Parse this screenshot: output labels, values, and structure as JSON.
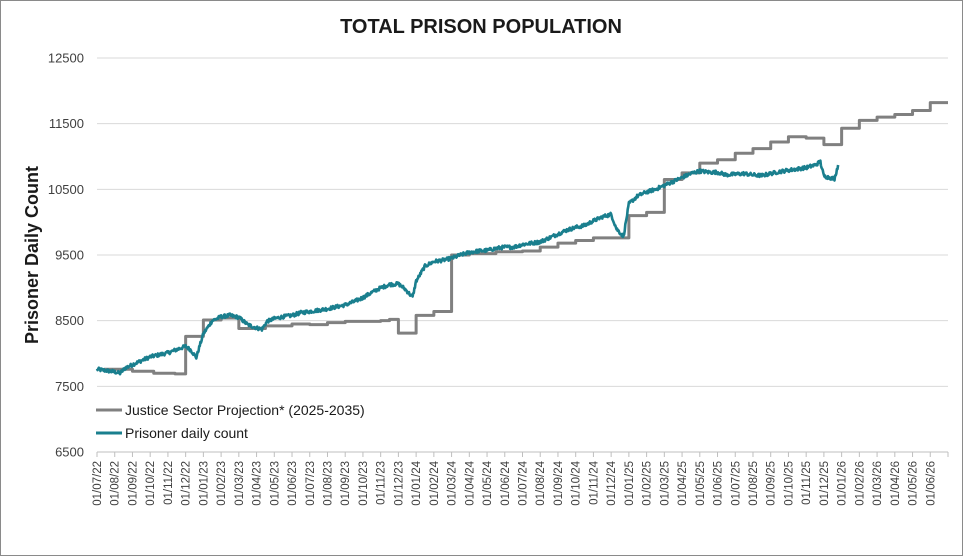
{
  "chart_data": {
    "type": "line",
    "title": "TOTAL PRISON POPULATION",
    "xlabel": "",
    "ylabel": "Prisoner Daily Count",
    "ylim": [
      6500,
      12500
    ],
    "yticks": [
      6500,
      7500,
      8500,
      9500,
      10500,
      11500,
      12500
    ],
    "grid": true,
    "legend_position": "bottom-left-inside",
    "x_categories": [
      "01/07/22",
      "01/08/22",
      "01/09/22",
      "01/10/22",
      "01/11/22",
      "01/12/22",
      "01/01/23",
      "01/02/23",
      "01/03/23",
      "01/04/23",
      "01/05/23",
      "01/06/23",
      "01/07/23",
      "01/08/23",
      "01/09/23",
      "01/10/23",
      "01/11/23",
      "01/12/23",
      "01/01/24",
      "01/02/24",
      "01/03/24",
      "01/04/24",
      "01/05/24",
      "01/06/24",
      "01/07/24",
      "01/08/24",
      "01/09/24",
      "01/10/24",
      "01/11/24",
      "01/12/24",
      "01/01/25",
      "01/02/25",
      "01/03/25",
      "01/04/25",
      "01/05/25",
      "01/06/25",
      "01/07/25",
      "01/08/25",
      "01/09/25",
      "01/10/25",
      "01/11/25",
      "01/12/25",
      "01/01/26",
      "01/02/26",
      "01/03/26",
      "01/04/26",
      "01/05/26",
      "01/06/26"
    ],
    "series": [
      {
        "name": "Justice Sector Projection* (2025-2035)",
        "color": "#808080",
        "style": "step",
        "points": [
          [
            0.4,
            7760
          ],
          [
            2.0,
            7730
          ],
          [
            3.2,
            7700
          ],
          [
            4.4,
            7690
          ],
          [
            5.0,
            8260
          ],
          [
            6.0,
            8510
          ],
          [
            7.0,
            8540
          ],
          [
            8.0,
            8380
          ],
          [
            9.5,
            8420
          ],
          [
            11.0,
            8450
          ],
          [
            12.0,
            8440
          ],
          [
            13.0,
            8470
          ],
          [
            14.0,
            8490
          ],
          [
            16.0,
            8500
          ],
          [
            16.5,
            8520
          ],
          [
            17.0,
            8310
          ],
          [
            18.0,
            8580
          ],
          [
            19.0,
            8640
          ],
          [
            20.0,
            9500
          ],
          [
            21.0,
            9520
          ],
          [
            22.5,
            9550
          ],
          [
            24.0,
            9560
          ],
          [
            25.0,
            9620
          ],
          [
            26.0,
            9680
          ],
          [
            27.0,
            9720
          ],
          [
            28.0,
            9760
          ],
          [
            29.0,
            9760
          ],
          [
            30.0,
            10100
          ],
          [
            31.0,
            10150
          ],
          [
            32.0,
            10650
          ],
          [
            33.0,
            10750
          ],
          [
            34.0,
            10900
          ],
          [
            35.0,
            10950
          ],
          [
            36.0,
            11050
          ],
          [
            37.0,
            11120
          ],
          [
            38.0,
            11220
          ],
          [
            39.0,
            11300
          ],
          [
            40.0,
            11280
          ],
          [
            41.0,
            11180
          ],
          [
            42.0,
            11430
          ],
          [
            43.0,
            11550
          ],
          [
            44.0,
            11600
          ],
          [
            45.0,
            11640
          ],
          [
            46.0,
            11700
          ],
          [
            47.0,
            11820
          ],
          [
            48.0,
            11820
          ]
        ]
      },
      {
        "name": "Prisoner daily count",
        "color": "#1a7f8e",
        "style": "noisy-line",
        "points": [
          [
            0.0,
            7760
          ],
          [
            0.5,
            7740
          ],
          [
            1.0,
            7720
          ],
          [
            1.3,
            7700
          ],
          [
            1.6,
            7780
          ],
          [
            2.0,
            7830
          ],
          [
            2.5,
            7890
          ],
          [
            3.0,
            7950
          ],
          [
            3.5,
            7980
          ],
          [
            4.0,
            8010
          ],
          [
            4.5,
            8060
          ],
          [
            5.0,
            8110
          ],
          [
            5.3,
            8050
          ],
          [
            5.6,
            7940
          ],
          [
            6.0,
            8300
          ],
          [
            6.5,
            8500
          ],
          [
            7.0,
            8560
          ],
          [
            7.5,
            8580
          ],
          [
            8.0,
            8550
          ],
          [
            8.5,
            8440
          ],
          [
            9.0,
            8390
          ],
          [
            9.3,
            8370
          ],
          [
            9.6,
            8490
          ],
          [
            10.0,
            8530
          ],
          [
            10.5,
            8560
          ],
          [
            11.0,
            8580
          ],
          [
            11.5,
            8620
          ],
          [
            12.0,
            8640
          ],
          [
            12.5,
            8660
          ],
          [
            13.0,
            8680
          ],
          [
            13.5,
            8710
          ],
          [
            14.0,
            8740
          ],
          [
            14.5,
            8790
          ],
          [
            15.0,
            8850
          ],
          [
            15.5,
            8930
          ],
          [
            16.0,
            9000
          ],
          [
            16.5,
            9050
          ],
          [
            17.0,
            9060
          ],
          [
            17.3,
            9000
          ],
          [
            17.8,
            8860
          ],
          [
            18.0,
            9100
          ],
          [
            18.5,
            9330
          ],
          [
            19.0,
            9400
          ],
          [
            19.5,
            9420
          ],
          [
            20.0,
            9450
          ],
          [
            20.5,
            9500
          ],
          [
            21.0,
            9540
          ],
          [
            21.5,
            9560
          ],
          [
            22.0,
            9570
          ],
          [
            22.5,
            9600
          ],
          [
            23.0,
            9620
          ],
          [
            23.5,
            9620
          ],
          [
            24.0,
            9660
          ],
          [
            24.5,
            9680
          ],
          [
            25.0,
            9700
          ],
          [
            25.5,
            9760
          ],
          [
            26.0,
            9820
          ],
          [
            26.5,
            9880
          ],
          [
            27.0,
            9920
          ],
          [
            27.5,
            9950
          ],
          [
            28.0,
            10020
          ],
          [
            28.5,
            10080
          ],
          [
            29.0,
            10120
          ],
          [
            29.3,
            9900
          ],
          [
            29.7,
            9780
          ],
          [
            30.0,
            10280
          ],
          [
            30.5,
            10400
          ],
          [
            31.0,
            10460
          ],
          [
            31.5,
            10500
          ],
          [
            32.0,
            10560
          ],
          [
            32.5,
            10620
          ],
          [
            33.0,
            10680
          ],
          [
            33.5,
            10740
          ],
          [
            34.0,
            10780
          ],
          [
            34.5,
            10760
          ],
          [
            35.0,
            10760
          ],
          [
            35.5,
            10720
          ],
          [
            36.0,
            10730
          ],
          [
            36.5,
            10740
          ],
          [
            37.0,
            10720
          ],
          [
            37.5,
            10710
          ],
          [
            38.0,
            10740
          ],
          [
            38.5,
            10770
          ],
          [
            39.0,
            10790
          ],
          [
            39.5,
            10810
          ],
          [
            40.0,
            10830
          ],
          [
            40.5,
            10870
          ],
          [
            40.8,
            10920
          ],
          [
            41.0,
            10700
          ],
          [
            41.3,
            10680
          ],
          [
            41.6,
            10660
          ],
          [
            41.8,
            10870
          ]
        ]
      }
    ]
  }
}
